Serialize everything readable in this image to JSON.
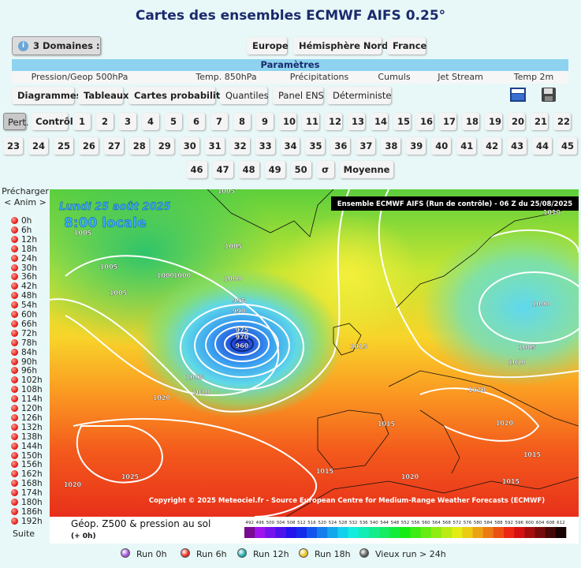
{
  "header": {
    "title": "Cartes des ensembles ECMWF AIFS 0.25°"
  },
  "domains": {
    "button": "3 Domaines :",
    "items": [
      "Europe",
      "Hémisphère Nord",
      "France"
    ]
  },
  "parameters": {
    "heading": "Paramètres",
    "items": [
      "Pression/Geop 500hPa",
      "Temp. 850hPa",
      "Précipitations",
      "Cumuls",
      "Jet Stream",
      "Temp 2m"
    ]
  },
  "tools": [
    "Diagrammes",
    "Tableaux",
    "Cartes probabilités",
    "Quantiles",
    "Panel ENS",
    "Déterministe"
  ],
  "members": [
    "Pert.",
    "Contrôle",
    "1",
    "2",
    "3",
    "4",
    "5",
    "6",
    "7",
    "8",
    "9",
    "10",
    "11",
    "12",
    "13",
    "14",
    "15",
    "16",
    "17",
    "18",
    "19",
    "20",
    "21",
    "22",
    "23",
    "24",
    "25",
    "26",
    "27",
    "28",
    "29",
    "30",
    "31",
    "32",
    "33",
    "34",
    "35",
    "36",
    "37",
    "38",
    "39",
    "40",
    "41",
    "42",
    "43",
    "44",
    "45",
    "46",
    "47",
    "48",
    "49",
    "50",
    "σ",
    "Moyenne"
  ],
  "sidebar": {
    "preload": "Précharger",
    "anim": "< Anim >",
    "hours": [
      "0h",
      "6h",
      "12h",
      "18h",
      "24h",
      "30h",
      "36h",
      "42h",
      "48h",
      "54h",
      "60h",
      "66h",
      "72h",
      "78h",
      "84h",
      "90h",
      "96h",
      "102h",
      "108h",
      "114h",
      "120h",
      "126h",
      "132h",
      "138h",
      "144h",
      "150h",
      "156h",
      "162h",
      "168h",
      "174h",
      "180h",
      "186h",
      "192h"
    ],
    "next": "Suite"
  },
  "map": {
    "date": "Lundi 25 août 2025",
    "local_time": "8:00 locale",
    "banner": "Ensemble ECMWF AIFS  (Run de contrôle)  -  06 Z du 25/08/2025",
    "copyright": "Copyright © 2025 Meteociel.fr - Source European Centre for Medium-Range Weather Forecasts (ECMWF)",
    "isobar_labels": [
      "1005",
      "1005",
      "1005",
      "1005",
      "1005",
      "1000",
      "1000",
      "1000",
      "995",
      "990",
      "975",
      "970",
      "960",
      "1015",
      "1010",
      "1000",
      "1005",
      "1010",
      "1005",
      "1010",
      "1020",
      "1020",
      "1020",
      "1025",
      "1015",
      "1020",
      "1020",
      "1015",
      "1015",
      "1015"
    ],
    "legend_title": "Géop. Z500 & pression au sol",
    "legend_step": "(+ 0h)",
    "scale": [
      492,
      496,
      500,
      504,
      508,
      512,
      516,
      520,
      524,
      528,
      532,
      536,
      540,
      544,
      548,
      552,
      556,
      560,
      564,
      568,
      572,
      576,
      580,
      584,
      588,
      592,
      596,
      600,
      604,
      608,
      612
    ]
  },
  "run_legend": [
    "Run 0h",
    "Run 6h",
    "Run 12h",
    "Run 18h",
    "Vieux run > 24h"
  ]
}
